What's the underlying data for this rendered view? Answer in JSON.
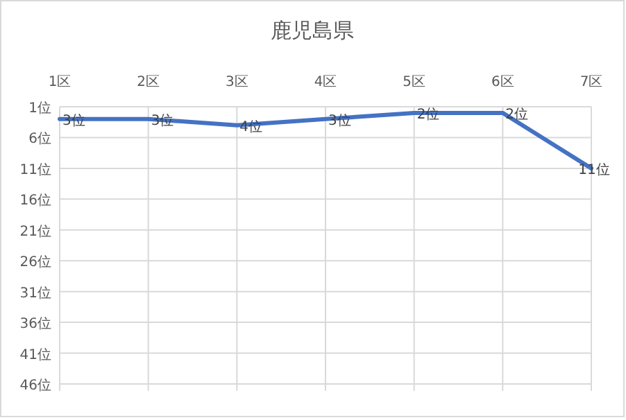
{
  "chart_data": {
    "type": "line",
    "title": "鹿児島県",
    "categories": [
      "1区",
      "2区",
      "3区",
      "4区",
      "5区",
      "6区",
      "7区"
    ],
    "series": [
      {
        "color": "#4472c4",
        "values": [
          3,
          3,
          4,
          3,
          2,
          2,
          11
        ],
        "value_labels": [
          "3位",
          "3位",
          "4位",
          "3位",
          "2位",
          "2位",
          "11位"
        ]
      }
    ],
    "ylim": [
      46,
      1
    ],
    "yticks": [
      {
        "value": 1,
        "label": "1位"
      },
      {
        "value": 6,
        "label": "6位"
      },
      {
        "value": 11,
        "label": "11位"
      },
      {
        "value": 16,
        "label": "16位"
      },
      {
        "value": 21,
        "label": "21位"
      },
      {
        "value": 26,
        "label": "26位"
      },
      {
        "value": 31,
        "label": "31位"
      },
      {
        "value": 36,
        "label": "36位"
      },
      {
        "value": 41,
        "label": "41位"
      },
      {
        "value": 46,
        "label": "46位"
      }
    ],
    "grid": true
  }
}
